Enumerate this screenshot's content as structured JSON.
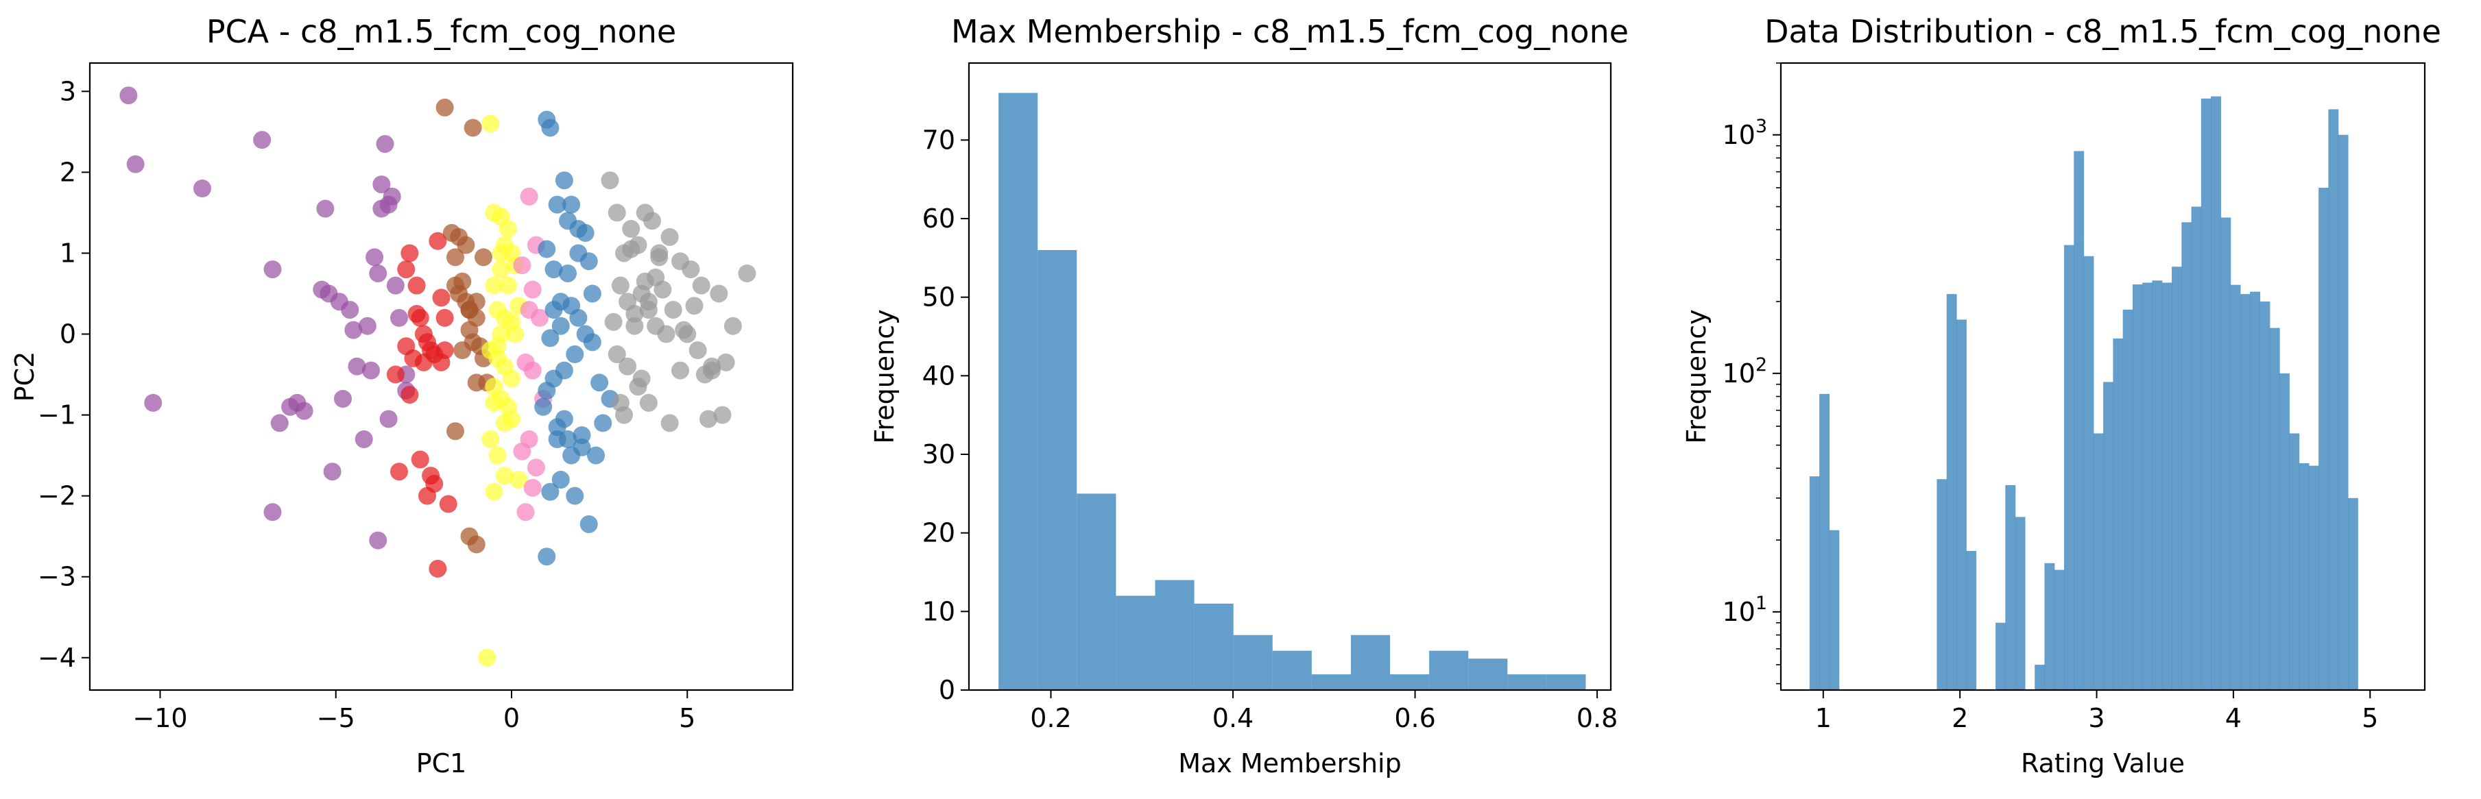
{
  "chart_data": [
    {
      "type": "scatter",
      "title": "PCA - c8_m1.5_fcm_cog_none",
      "xlabel": "PC1",
      "ylabel": "PC2",
      "xlim": [
        -12,
        8
      ],
      "ylim": [
        -4.4,
        3.35
      ],
      "xticks": [
        -10,
        -5,
        0,
        5
      ],
      "xtick_labels": [
        "−10",
        "−5",
        "0",
        "5"
      ],
      "yticks": [
        -4,
        -3,
        -2,
        -1,
        0,
        1,
        2,
        3
      ],
      "ytick_labels": [
        "−4",
        "−3",
        "−2",
        "−1",
        "0",
        "1",
        "2",
        "3"
      ],
      "grid": false,
      "colors": {
        "purple": "#984ea3",
        "red": "#e41a1c",
        "brown": "#a65628",
        "yellow": "#ffff33",
        "pink": "#f781bf",
        "blue": "#377eb8",
        "gray": "#999999"
      },
      "series": [
        {
          "color": "#984ea3",
          "x": [
            -10.9,
            -10.7,
            -8.8,
            -7.1,
            -6.8,
            -6.6,
            -6.3,
            -6.1,
            -5.9,
            -10.2,
            -5.3,
            -5.4,
            -5.1,
            -4.9,
            -4.8,
            -4.6,
            -4.5,
            -4.4,
            -4.2,
            -4.1,
            -3.9,
            -3.8,
            -3.7,
            -3.6,
            -3.5,
            -3.4,
            -3.3,
            -3.7,
            -4.0,
            -3.5,
            -3.2,
            -3.0,
            -3.0,
            -6.8,
            -5.2,
            -3.8
          ],
          "y": [
            2.95,
            2.1,
            1.8,
            2.4,
            0.8,
            -1.1,
            -0.9,
            -0.85,
            -0.95,
            -0.85,
            1.55,
            0.55,
            -1.7,
            0.4,
            -0.8,
            0.3,
            0.05,
            -0.4,
            -1.3,
            0.1,
            0.95,
            0.75,
            1.55,
            2.35,
            1.6,
            1.7,
            0.6,
            1.85,
            -0.45,
            -1.05,
            0.2,
            -0.7,
            -0.5,
            -2.2,
            0.5,
            -2.55
          ]
        },
        {
          "color": "#e41a1c",
          "x": [
            -3.0,
            -2.9,
            -2.7,
            -2.5,
            -2.4,
            -2.3,
            -2.2,
            -2.1,
            -2.0,
            -1.9,
            -1.8,
            -3.2,
            -2.8,
            -2.6,
            -2.6,
            -2.3,
            -2.2,
            -2.0,
            -2.9,
            -3.3,
            -2.4,
            -2.7,
            -2.1,
            -1.9,
            -3.0,
            -2.5
          ],
          "y": [
            0.8,
            1.0,
            0.6,
            0.0,
            -0.1,
            -1.75,
            -1.85,
            1.15,
            0.45,
            -0.2,
            -2.1,
            -1.7,
            -0.3,
            0.2,
            -1.55,
            -0.2,
            -0.25,
            -0.35,
            -0.75,
            -0.5,
            -2.0,
            0.25,
            -2.9,
            0.2,
            -0.15,
            -0.35
          ]
        },
        {
          "color": "#a65628",
          "x": [
            -1.9,
            -1.7,
            -1.6,
            -1.5,
            -1.4,
            -1.3,
            -1.2,
            -1.1,
            -1.0,
            -0.9,
            -0.8,
            -1.6,
            -1.4,
            -1.2,
            -1.1,
            -1.0,
            -0.8,
            -1.5,
            -1.3,
            -1.2,
            -1.0,
            -0.7,
            -1.0,
            -1.6,
            -1.2
          ],
          "y": [
            2.8,
            1.25,
            0.95,
            0.5,
            0.65,
            1.1,
            0.3,
            -0.1,
            0.4,
            -0.15,
            0.95,
            0.6,
            -0.2,
            0.05,
            2.55,
            0.2,
            -0.3,
            1.2,
            0.4,
            -2.5,
            -0.6,
            -0.6,
            -2.6,
            -1.2,
            0.3
          ]
        },
        {
          "color": "#ffff33",
          "x": [
            -0.6,
            -0.5,
            -0.3,
            -0.2,
            -0.1,
            0.0,
            0.1,
            0.2,
            -0.3,
            -0.5,
            -0.4,
            -0.2,
            0.0,
            0.1,
            -0.6,
            -0.4,
            -0.2,
            0.0,
            -0.5,
            -0.3,
            -0.1,
            0.0,
            -0.6,
            -0.4,
            -0.2,
            -0.5,
            -0.3,
            -0.2,
            -0.7,
            -0.4,
            -0.1,
            0.2,
            -0.3,
            -0.5
          ],
          "y": [
            2.6,
            1.5,
            1.45,
            1.1,
            1.3,
            1.0,
            0.85,
            0.35,
            0.8,
            0.6,
            0.3,
            0.2,
            0.15,
            0.0,
            -0.2,
            -0.3,
            -0.4,
            -0.55,
            -0.65,
            -0.8,
            -0.9,
            -1.05,
            -1.3,
            -1.5,
            -1.75,
            -1.95,
            0.0,
            -1.1,
            -4.0,
            -0.15,
            0.6,
            -1.8,
            1.0,
            -0.85
          ]
        },
        {
          "color": "#f781bf",
          "x": [
            0.5,
            0.7,
            0.3,
            0.6,
            0.5,
            0.8,
            0.4,
            0.6,
            0.9,
            0.5,
            0.3,
            0.7,
            0.4,
            0.6
          ],
          "y": [
            1.7,
            1.1,
            0.85,
            0.55,
            0.3,
            0.2,
            -0.35,
            -0.45,
            -0.8,
            -1.3,
            -1.45,
            -1.65,
            -2.2,
            -1.9
          ]
        },
        {
          "color": "#377eb8",
          "x": [
            1.0,
            1.1,
            1.5,
            1.7,
            1.9,
            2.1,
            2.2,
            1.6,
            1.3,
            1.0,
            1.2,
            1.4,
            1.7,
            1.9,
            2.1,
            2.3,
            1.8,
            1.5,
            1.2,
            1.0,
            0.9,
            1.3,
            1.6,
            2.0,
            2.4,
            2.6,
            1.1,
            1.4,
            1.7,
            1.5,
            1.3,
            1.8,
            2.2,
            1.0,
            1.1,
            1.4,
            1.6,
            1.9,
            2.3,
            2.5,
            2.8,
            2.0,
            1.2
          ],
          "y": [
            2.65,
            2.55,
            1.9,
            1.6,
            1.3,
            1.25,
            0.9,
            1.4,
            1.6,
            1.05,
            0.8,
            0.4,
            0.35,
            0.2,
            0.0,
            -0.1,
            -0.25,
            -0.45,
            -0.55,
            -0.7,
            -0.9,
            -1.15,
            -1.3,
            -1.4,
            -1.5,
            -1.1,
            -1.95,
            -1.8,
            -1.5,
            -1.05,
            -1.3,
            -2.0,
            -2.35,
            -2.75,
            -0.05,
            0.1,
            0.75,
            1.0,
            0.5,
            -0.6,
            -0.8,
            -1.25,
            0.3
          ]
        },
        {
          "color": "#999999",
          "x": [
            2.8,
            3.0,
            3.2,
            3.4,
            3.6,
            3.8,
            4.0,
            4.2,
            4.5,
            4.8,
            5.1,
            5.4,
            5.7,
            6.0,
            6.3,
            6.7,
            3.1,
            3.3,
            3.5,
            3.7,
            3.9,
            4.1,
            4.3,
            4.6,
            4.9,
            5.3,
            5.7,
            6.1,
            3.0,
            3.3,
            3.6,
            3.9,
            4.4,
            4.8,
            5.2,
            5.6,
            5.9,
            2.9,
            3.2,
            3.7,
            4.1,
            4.5,
            3.4,
            3.8,
            4.2,
            3.1,
            3.5,
            3.9,
            5.0,
            5.5
          ],
          "y": [
            1.9,
            1.5,
            1.0,
            1.3,
            1.1,
            1.5,
            1.4,
            1.0,
            1.2,
            0.9,
            0.8,
            0.6,
            -0.4,
            -1.0,
            0.1,
            0.75,
            0.6,
            0.4,
            0.1,
            0.5,
            0.3,
            0.7,
            0.55,
            0.3,
            0.05,
            -0.2,
            -0.45,
            -0.35,
            -0.25,
            -0.4,
            -0.65,
            -0.85,
            0.0,
            -0.45,
            0.35,
            -1.05,
            0.5,
            0.15,
            -1.0,
            -0.55,
            0.1,
            -1.1,
            1.05,
            0.65,
            0.95,
            -0.85,
            0.25,
            0.4,
            0.0,
            -0.5
          ]
        }
      ]
    },
    {
      "type": "bar",
      "title": "Max Membership - c8_m1.5_fcm_cog_none",
      "xlabel": "Max Membership",
      "ylabel": "Frequency",
      "xlim": [
        0.11,
        0.815
      ],
      "ylim": [
        0,
        79.8
      ],
      "xticks": [
        0.2,
        0.4,
        0.6,
        0.8
      ],
      "xtick_labels": [
        "0.2",
        "0.4",
        "0.6",
        "0.8"
      ],
      "yticks": [
        0,
        10,
        20,
        30,
        40,
        50,
        60,
        70
      ],
      "ytick_labels": [
        "0",
        "10",
        "20",
        "30",
        "40",
        "50",
        "60",
        "70"
      ],
      "bin_edges": [
        0.1425,
        0.1855,
        0.2285,
        0.2715,
        0.3145,
        0.3575,
        0.4005,
        0.4435,
        0.4865,
        0.5295,
        0.5725,
        0.6155,
        0.6585,
        0.7015,
        0.7445,
        0.7875
      ],
      "values": [
        76,
        56,
        25,
        12,
        14,
        11,
        7,
        5,
        2,
        7,
        2,
        5,
        4,
        2,
        2
      ],
      "color": "#4a8fc4"
    },
    {
      "type": "bar",
      "title": "Data Distribution - c8_m1.5_fcm_cog_none",
      "xlabel": "Rating Value",
      "ylabel": "Frequency",
      "scale_y": "log",
      "xlim": [
        0.69,
        5.4
      ],
      "ylim": [
        4.7,
        2000
      ],
      "xticks": [
        1,
        2,
        3,
        4,
        5
      ],
      "xtick_labels": [
        "1",
        "2",
        "3",
        "4",
        "5"
      ],
      "yticks": [
        10,
        100,
        1000
      ],
      "ytick_labels": [
        {
          "base": "10",
          "exp": "1"
        },
        {
          "base": "10",
          "exp": "2"
        },
        {
          "base": "10",
          "exp": "3"
        }
      ],
      "bin_start": 0.9,
      "bin_width": 0.0716,
      "values": [
        37,
        82,
        22,
        0,
        0,
        0,
        0,
        0,
        0,
        0,
        0,
        0,
        0,
        36,
        215,
        168,
        18,
        0,
        0,
        9,
        34,
        25,
        0,
        6,
        16,
        15,
        345,
        855,
        310,
        56,
        92,
        140,
        185,
        236,
        240,
        245,
        240,
        280,
        430,
        500,
        1420,
        1450,
        450,
        235,
        215,
        220,
        200,
        155,
        100,
        56,
        42,
        41,
        600,
        1280,
        1000,
        30
      ],
      "color": "#4a8fc4"
    }
  ]
}
